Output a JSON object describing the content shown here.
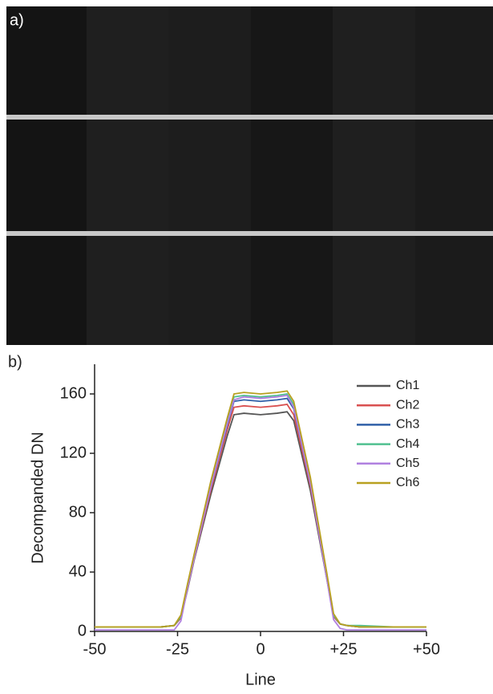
{
  "image_panel": {
    "label": "a)"
  },
  "chart_data": {
    "type": "line",
    "panel_label": "b)",
    "x_label": "Line",
    "y_label": "Decompanded DN",
    "x": [
      -50,
      -40,
      -30,
      -26,
      -24,
      -22,
      -20,
      -15,
      -10,
      -8,
      -5,
      0,
      5,
      8,
      10,
      15,
      20,
      22,
      24,
      26,
      30,
      40,
      50
    ],
    "series": [
      {
        "name": "Ch1",
        "color": "#555555",
        "values": [
          3,
          3,
          3,
          4,
          9,
          28,
          48,
          92,
          132,
          146,
          147,
          146,
          147,
          148,
          142,
          95,
          35,
          10,
          5,
          4,
          3,
          3,
          3
        ]
      },
      {
        "name": "Ch2",
        "color": "#d95050",
        "values": [
          3,
          3,
          3,
          4,
          9,
          29,
          49,
          95,
          136,
          151,
          152,
          151,
          152,
          153,
          146,
          98,
          36,
          10,
          5,
          4,
          3,
          3,
          3
        ]
      },
      {
        "name": "Ch3",
        "color": "#3060a8",
        "values": [
          3,
          3,
          3,
          4,
          10,
          30,
          50,
          97,
          139,
          155,
          156,
          155,
          156,
          157,
          150,
          100,
          37,
          11,
          5,
          4,
          3,
          3,
          3
        ]
      },
      {
        "name": "Ch4",
        "color": "#50c090",
        "values": [
          3,
          3,
          3,
          4,
          10,
          31,
          51,
          99,
          142,
          158,
          159,
          158,
          159,
          160,
          153,
          102,
          38,
          11,
          5,
          4,
          4,
          3,
          3
        ]
      },
      {
        "name": "Ch5",
        "color": "#b080e0",
        "values": [
          1,
          1,
          1,
          1,
          7,
          29,
          49,
          97,
          140,
          156,
          158,
          157,
          158,
          159,
          151,
          100,
          35,
          8,
          2,
          1,
          1,
          1,
          1
        ]
      },
      {
        "name": "Ch6",
        "color": "#b8a020",
        "values": [
          3,
          3,
          3,
          4,
          11,
          32,
          52,
          101,
          144,
          160,
          161,
          160,
          161,
          162,
          155,
          104,
          39,
          12,
          5,
          4,
          3,
          3,
          3
        ]
      }
    ],
    "xlim": [
      -50,
      50
    ],
    "ylim": [
      0,
      180
    ],
    "xticks": [
      -50,
      -25,
      0,
      {
        "value": 25,
        "label": "+25"
      },
      {
        "value": 50,
        "label": "+50"
      }
    ],
    "yticks": [
      0,
      40,
      80,
      120,
      160
    ],
    "legend": "upper right"
  }
}
